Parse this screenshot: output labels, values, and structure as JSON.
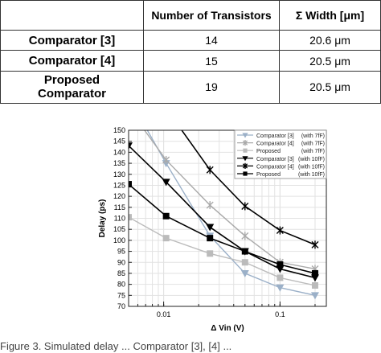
{
  "table": {
    "headers": [
      "",
      "Number of Transistors",
      "Σ Width [μm]"
    ],
    "rows": [
      {
        "name": "Comparator [3]",
        "transistors": "14",
        "width": "20.6 μm"
      },
      {
        "name": "Comparator [4]",
        "transistors": "15",
        "width": "20.5 μm"
      },
      {
        "name": "Proposed Comparator",
        "transistors": "19",
        "width": "20.5 μm"
      }
    ]
  },
  "caption": "Figure 3. Simulated delay ... Comparator [3], [4] ...",
  "chart_data": {
    "type": "line",
    "xscale": "log",
    "xlabel": "Δ Vin (V)",
    "ylabel": "Delay (ps)",
    "xlim": [
      0.005,
      0.25
    ],
    "ylim": [
      70,
      150
    ],
    "xticks": [
      {
        "v": 0.01,
        "label": "0.01"
      },
      {
        "v": 0.1,
        "label": "0.1"
      }
    ],
    "yticks": [
      70,
      75,
      80,
      85,
      90,
      95,
      100,
      105,
      110,
      115,
      120,
      125,
      130,
      135,
      140,
      145,
      150
    ],
    "grid": true,
    "legend": "top-right",
    "series": [
      {
        "name": "Comparator [3]",
        "cap": "(with 7fF)",
        "color": "#9bb0c8",
        "marker": "tri",
        "filled": true,
        "x": [
          0.005,
          0.0105,
          0.025,
          0.05,
          0.1,
          0.2
        ],
        "y": [
          165,
          135,
          102,
          85,
          78.5,
          75
        ]
      },
      {
        "name": "Comparator [4]",
        "cap": "(with 7fF)",
        "color": "#aaaaaa",
        "marker": "star",
        "x": [
          0.005,
          0.0105,
          0.025,
          0.05,
          0.1,
          0.2
        ],
        "y": [
          160,
          136.5,
          116,
          102,
          90,
          87
        ]
      },
      {
        "name": "Proposed",
        "cap": "(with 7fF)",
        "color": "#bbbbbb",
        "marker": "sq",
        "filled": true,
        "x": [
          0.005,
          0.0105,
          0.025,
          0.05,
          0.1,
          0.2
        ],
        "y": [
          110.5,
          101,
          94,
          90,
          83,
          79.5
        ]
      },
      {
        "name": "Comparator [3]",
        "cap": "(with 10fF)",
        "color": "#000000",
        "marker": "tri",
        "filled": true,
        "x": [
          0.005,
          0.0105,
          0.025,
          0.05,
          0.1,
          0.2
        ],
        "y": [
          143,
          126.5,
          106,
          95,
          87,
          83
        ]
      },
      {
        "name": "Comparator [4]",
        "cap": "(with 10fF)",
        "color": "#000000",
        "marker": "star",
        "x": [
          0.0105,
          0.025,
          0.05,
          0.1,
          0.2
        ],
        "y": [
          160,
          132,
          115.5,
          104.5,
          98
        ]
      },
      {
        "name": "Proposed",
        "cap": "(with 10fF)",
        "color": "#000000",
        "marker": "sq",
        "filled": true,
        "x": [
          0.005,
          0.0105,
          0.025,
          0.05,
          0.1,
          0.2
        ],
        "y": [
          125.5,
          111,
          101,
          95,
          89,
          85
        ]
      }
    ]
  }
}
